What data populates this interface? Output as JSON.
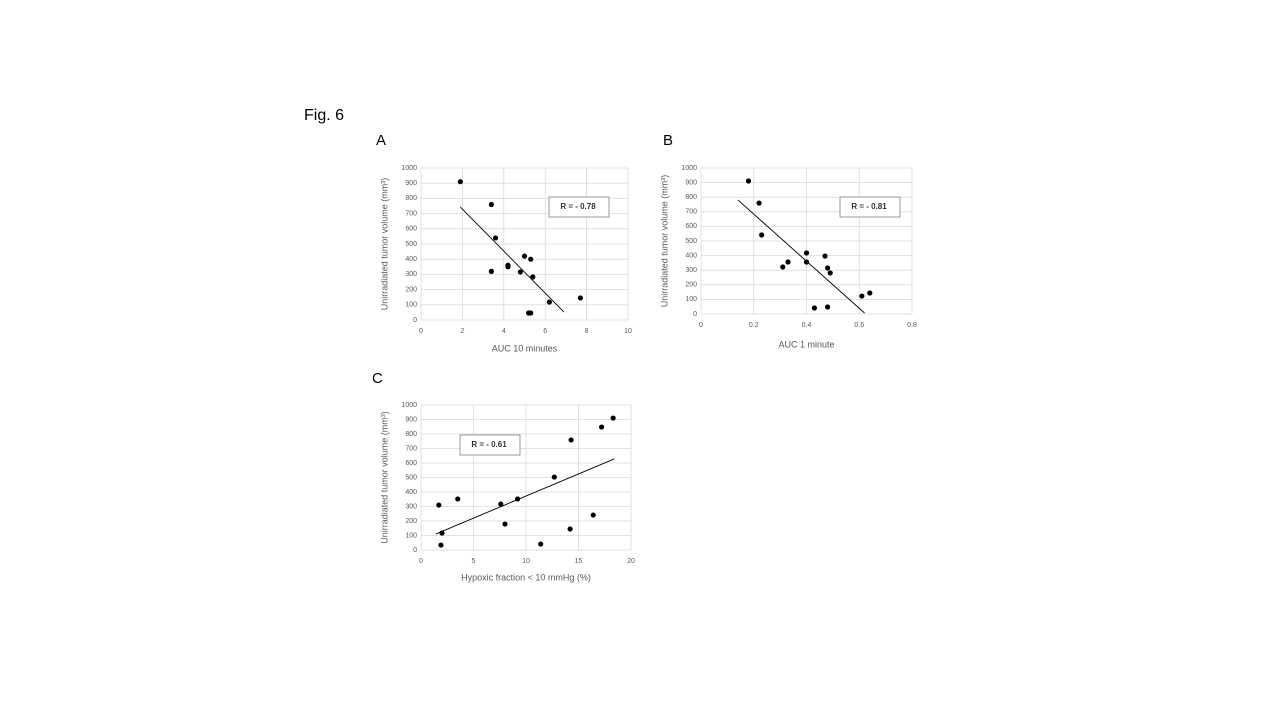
{
  "figure_label": "Fig. 6",
  "chart_data": [
    {
      "type": "scatter",
      "panel": "A",
      "x_label": "AUC 10 minutes",
      "y_label": "Unirradiated tumor volume (mm³)",
      "annotation": "R = - 0.78",
      "x": [
        1.9,
        3.4,
        3.6,
        4.2,
        4.2,
        3.4,
        5.0,
        5.3,
        4.8,
        5.4,
        6.2,
        7.7,
        5.2,
        5.3
      ],
      "y": [
        910,
        760,
        540,
        360,
        350,
        320,
        420,
        400,
        316,
        283,
        118,
        145,
        46,
        46
      ],
      "trendline": {
        "x": [
          1.9,
          6.9
        ],
        "y": [
          743,
          53
        ]
      },
      "color": "#000000",
      "grid": true,
      "xlim": [
        0,
        10
      ],
      "xticks": [
        0,
        2,
        4,
        6,
        8,
        10
      ],
      "ylim": [
        0,
        1000
      ],
      "yticks": [
        0,
        100,
        200,
        300,
        400,
        500,
        600,
        700,
        800,
        900,
        1000
      ]
    },
    {
      "type": "scatter",
      "panel": "B",
      "x_label": "AUC 1 minute",
      "y_label": "Unirradiated tumor volume (mm³)",
      "annotation": "R = - 0.81",
      "x": [
        0.18,
        0.22,
        0.23,
        0.33,
        0.31,
        0.4,
        0.4,
        0.47,
        0.48,
        0.49,
        0.43,
        0.48,
        0.61,
        0.64
      ],
      "y": [
        911,
        760,
        541,
        356,
        322,
        418,
        356,
        397,
        315,
        281,
        41,
        48,
        123,
        144
      ],
      "trendline": {
        "x": [
          0.14,
          0.62
        ],
        "y": [
          781,
          7
        ]
      },
      "color": "#000000",
      "grid": true,
      "xlim": [
        0,
        0.8
      ],
      "xticks": [
        0,
        0.2,
        0.4,
        0.6,
        0.8
      ],
      "ylim": [
        0,
        1000
      ],
      "yticks": [
        0,
        100,
        200,
        300,
        400,
        500,
        600,
        700,
        800,
        900,
        1000
      ]
    },
    {
      "type": "scatter",
      "panel": "C",
      "x_label": "Hypoxic fraction < 10 mmHg (%)",
      "y_label": "Unirradiated tumor volume (mm³)",
      "annotation": "R = - 0.61",
      "x": [
        1.7,
        2.0,
        1.9,
        3.5,
        7.6,
        8.0,
        9.2,
        11.4,
        12.7,
        14.3,
        14.2,
        16.4,
        17.2,
        18.3
      ],
      "y": [
        310,
        117,
        34,
        352,
        317,
        179,
        352,
        41,
        503,
        759,
        145,
        241,
        848,
        910
      ],
      "trendline": {
        "x": [
          1.4,
          18.4
        ],
        "y": [
          110,
          628
        ]
      },
      "color": "#000000",
      "grid": true,
      "xlim": [
        0,
        20
      ],
      "xticks": [
        0,
        5,
        10,
        15,
        20
      ],
      "ylim": [
        0,
        1000
      ],
      "yticks": [
        0,
        100,
        200,
        300,
        400,
        500,
        600,
        700,
        800,
        900,
        1000
      ]
    }
  ]
}
